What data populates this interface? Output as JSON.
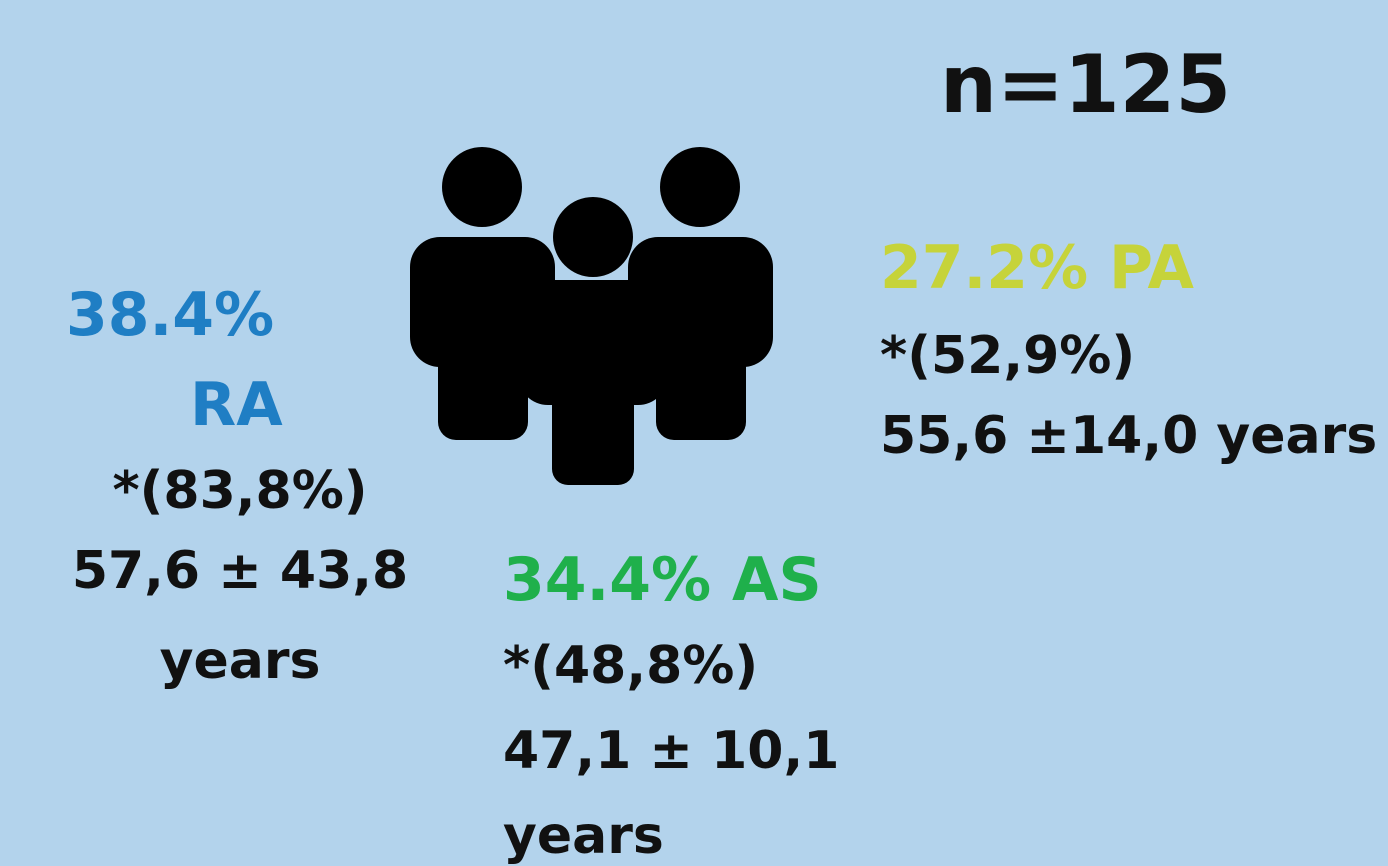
{
  "total": "n=125",
  "groups": [
    {
      "heading": [
        "38.4%",
        "RA"
      ],
      "lines": [
        "*(83,8%)",
        "57,6 ± 43,8",
        "years"
      ]
    },
    {
      "heading": [
        "34.4% AS"
      ],
      "lines": [
        "*(48,8%)",
        "47,1 ± 10,1",
        "years"
      ]
    },
    {
      "heading": [
        "27.2% PA"
      ],
      "lines": [
        "*(52,9%)",
        "55,6 ±14,0 years"
      ]
    }
  ]
}
